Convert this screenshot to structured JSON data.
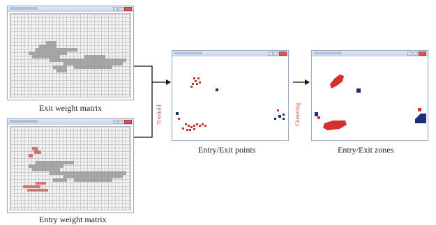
{
  "captions": {
    "exit_matrix": "Exit weight matrix",
    "entry_matrix": "Entry weight matrix",
    "points": "Entry/Exit points",
    "zones": "Entry/Exit zones"
  },
  "steps": {
    "threshold": "Treshold",
    "clustering": "Clustering"
  },
  "colors": {
    "entry": "#d62f2f",
    "exit": "#1c2e7a",
    "exit_trace": "#9a9a9a",
    "entry_trace": "#d06868"
  },
  "icons": [
    "arrow-right-icon",
    "window-close-icon",
    "window-maximize-icon",
    "window-minimize-icon"
  ]
}
